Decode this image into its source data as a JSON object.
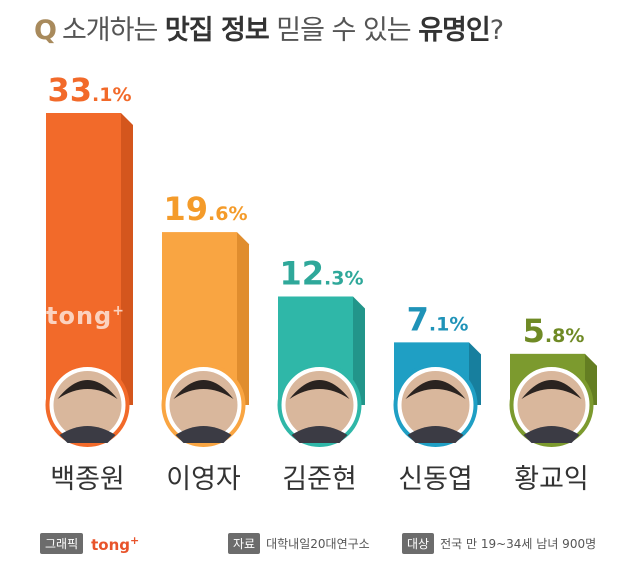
{
  "header": {
    "q": "Q",
    "part1": "소개하는 ",
    "part2": "맛집 정보",
    "part3": " 믿을 수 있는 ",
    "part4": "유명인",
    "part5": "?"
  },
  "chart_data": {
    "type": "bar",
    "title": "소개하는 맛집 정보 믿을 수 있는 유명인?",
    "categories": [
      "백종원",
      "이영자",
      "김준현",
      "신동엽",
      "황교익"
    ],
    "values": [
      33.1,
      19.6,
      12.3,
      7.1,
      5.8
    ],
    "value_suffix": "%",
    "colors": [
      "#f26a2a",
      "#f9a542",
      "#2fb7a8",
      "#1f9fc4",
      "#7c9a2e"
    ],
    "side_colors": [
      "#d4561d",
      "#e08d2e",
      "#22958a",
      "#177f9e",
      "#647e22"
    ],
    "label_colors": [
      "#f26a2a",
      "#f49b2a",
      "#2fa89a",
      "#1f93b8",
      "#6f8a25"
    ],
    "ylim": [
      0,
      35
    ]
  },
  "watermark": {
    "text": "tong",
    "sup": "+"
  },
  "footer": {
    "graphic_tag": "그래픽",
    "logo": "tong",
    "logo_sup": "+",
    "source_tag": "자료",
    "source": "대학내일20대연구소",
    "target_tag": "대상",
    "target": "전국 만 19~34세 남녀 900명"
  }
}
